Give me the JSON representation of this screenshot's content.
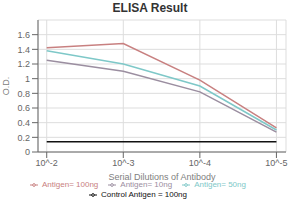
{
  "chart_data": {
    "type": "line",
    "title": "ELISA Result",
    "xlabel": "Serial Dilutions of Antibody",
    "ylabel": "O.D.",
    "x": [
      0.01,
      0.001,
      0.0001,
      1e-05
    ],
    "xlim": [
      0.013,
      7.5e-06
    ],
    "xticks": [
      {
        "value": 0.01,
        "label": "10^-2"
      },
      {
        "value": 0.001,
        "label": "10^-3"
      },
      {
        "value": 0.0001,
        "label": "10^-4"
      },
      {
        "value": 1e-05,
        "label": "10^-5"
      }
    ],
    "ylim": [
      0,
      1.8
    ],
    "yticks": [
      0,
      0.2,
      0.4,
      0.6,
      0.8,
      1,
      1.2,
      1.4,
      1.6
    ],
    "log": "x",
    "grid": true,
    "legend": "bottom",
    "series": [
      {
        "name": "Control Antigen = 100ng",
        "color": "#111111",
        "values": [
          0.14,
          0.14,
          0.14,
          0.14
        ]
      },
      {
        "name": "Antigen= 10ng",
        "color": "#9B8EA0",
        "values": [
          1.25,
          1.1,
          0.82,
          0.27
        ]
      },
      {
        "name": "Antigen= 50ng",
        "color": "#7EC8C8",
        "values": [
          1.38,
          1.2,
          0.9,
          0.3
        ]
      },
      {
        "name": "Antigen= 100ng",
        "color": "#C88080",
        "values": [
          1.42,
          1.48,
          0.98,
          0.33
        ]
      }
    ]
  }
}
